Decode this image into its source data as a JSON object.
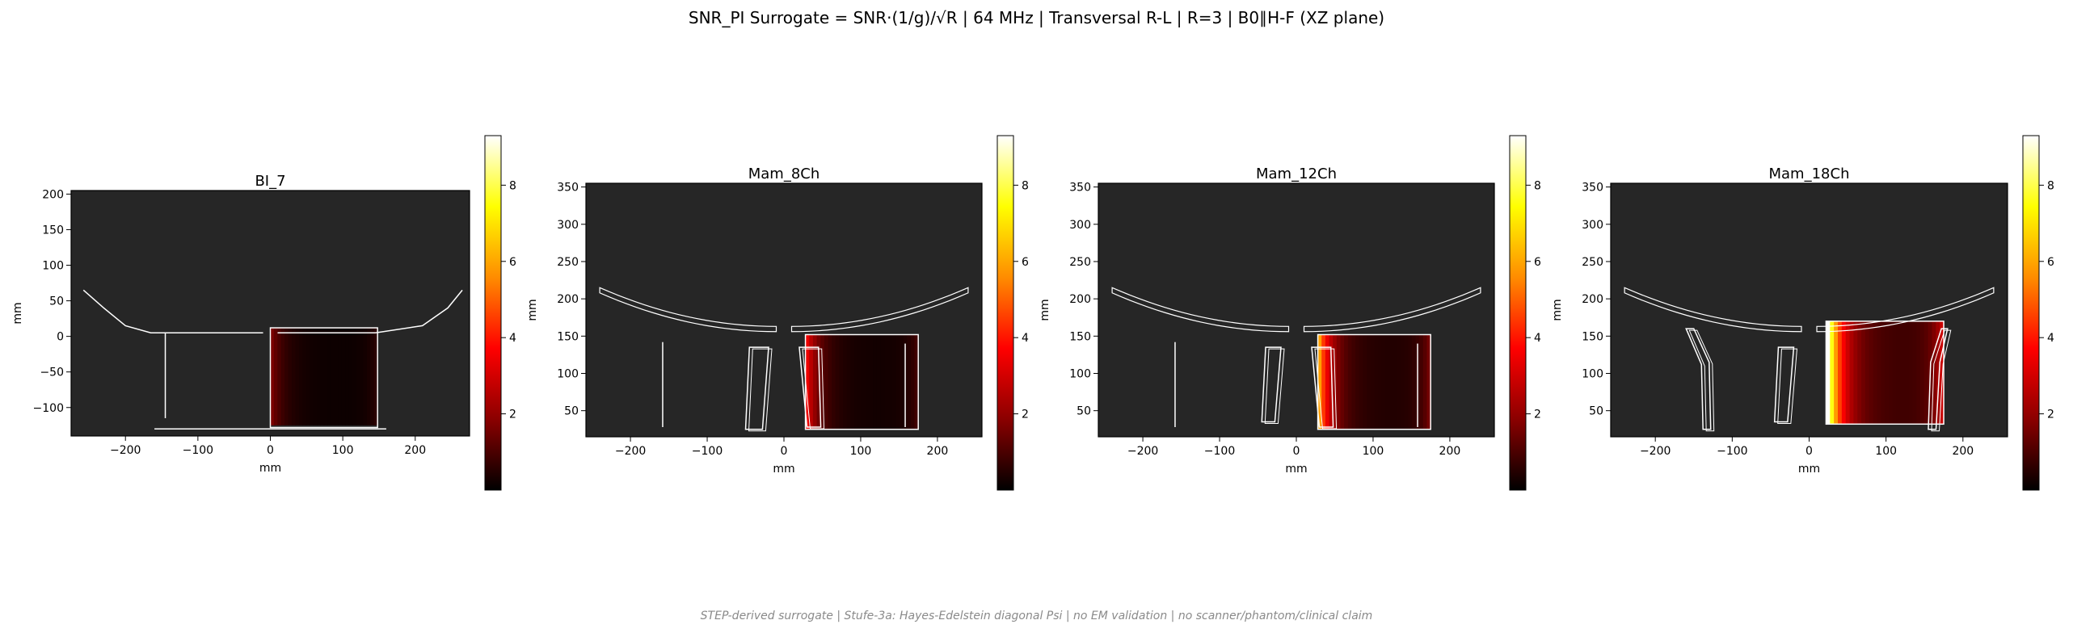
{
  "figure": {
    "title": "SNR_PI Surrogate = SNR·(1/g)/√R | 64 MHz | Transversal R-L | R=3 | B0∥H-F (XZ plane)",
    "footer": "STEP-derived surrogate | Stufe-3a: Hayes-Edelstein diagonal Psi | no EM validation | no scanner/phantom/clinical claim"
  },
  "colors": {
    "plot_background": "#262626",
    "outline": "#ffffff",
    "colormap": [
      "#000000",
      "#8b0000",
      "#ff0000",
      "#ff8c00",
      "#ffff00",
      "#ffffff"
    ]
  },
  "chart_data": [
    {
      "type": "heatmap",
      "title": "BI_7",
      "xlabel": "mm",
      "ylabel": "mm",
      "xlim": [
        -275,
        275
      ],
      "ylim": [
        -140,
        205
      ],
      "xticks": [
        -200,
        -100,
        0,
        100,
        200
      ],
      "yticks": [
        -100,
        -50,
        0,
        50,
        100,
        150,
        200
      ],
      "colorbar": {
        "range": [
          0,
          9.3
        ],
        "ticks": [
          2,
          4,
          6,
          8
        ]
      },
      "heat_region": {
        "x": [
          0,
          148
        ],
        "y": [
          -125,
          12
        ],
        "level": 0.6,
        "max_level": 1.5
      },
      "outlines": [
        {
          "kind": "polyline",
          "points": [
            [
              -258,
              65
            ],
            [
              -230,
              40
            ],
            [
              -200,
              15
            ],
            [
              -165,
              5
            ],
            [
              -10,
              5
            ]
          ]
        },
        {
          "kind": "polyline",
          "points": [
            [
              10,
              5
            ],
            [
              145,
              5
            ],
            [
              210,
              15
            ],
            [
              245,
              40
            ],
            [
              265,
              65
            ]
          ]
        },
        {
          "kind": "line",
          "points": [
            [
              -145,
              -115
            ],
            [
              -145,
              5
            ]
          ]
        },
        {
          "kind": "rect",
          "x": [
            0,
            148
          ],
          "y": [
            -128,
            12
          ]
        },
        {
          "kind": "line",
          "points": [
            [
              -160,
              -130
            ],
            [
              160,
              -130
            ]
          ]
        }
      ]
    },
    {
      "type": "heatmap",
      "title": "Mam_8Ch",
      "xlabel": "mm",
      "ylabel": "mm",
      "xlim": [
        -258,
        258
      ],
      "ylim": [
        15,
        355
      ],
      "xticks": [
        -200,
        -100,
        0,
        100,
        200
      ],
      "yticks": [
        50,
        100,
        150,
        200,
        250,
        300,
        350
      ],
      "colorbar": {
        "range": [
          0,
          9.3
        ],
        "ticks": [
          2,
          4,
          6,
          8
        ]
      },
      "heat_region": {
        "x": [
          28,
          175
        ],
        "y": [
          25,
          152
        ],
        "level": 0.9,
        "max_level": 3.2
      },
      "outlines": [
        {
          "kind": "arc",
          "x": [
            -240,
            -10
          ],
          "y_edge": 215,
          "y_center": 163,
          "thickness": 7
        },
        {
          "kind": "arc",
          "x": [
            10,
            240
          ],
          "y_edge": 215,
          "y_center": 163,
          "thickness": 7
        },
        {
          "kind": "line",
          "points": [
            [
              -158,
              28
            ],
            [
              -158,
              142
            ]
          ]
        },
        {
          "kind": "poly",
          "points": [
            [
              -50,
              25
            ],
            [
              -28,
              25
            ],
            [
              -20,
              135
            ],
            [
              -45,
              135
            ]
          ]
        },
        {
          "kind": "poly",
          "points": [
            [
              20,
              135
            ],
            [
              45,
              135
            ],
            [
              48,
              28
            ],
            [
              30,
              28
            ]
          ]
        },
        {
          "kind": "rect",
          "x": [
            28,
            175
          ],
          "y": [
            25,
            152
          ]
        },
        {
          "kind": "line",
          "points": [
            [
              158,
              28
            ],
            [
              158,
              140
            ]
          ]
        }
      ]
    },
    {
      "type": "heatmap",
      "title": "Mam_12Ch",
      "xlabel": "mm",
      "ylabel": "mm",
      "xlim": [
        -258,
        258
      ],
      "ylim": [
        15,
        355
      ],
      "xticks": [
        -200,
        -100,
        0,
        100,
        200
      ],
      "yticks": [
        50,
        100,
        150,
        200,
        250,
        300,
        350
      ],
      "colorbar": {
        "range": [
          0,
          9.3
        ],
        "ticks": [
          2,
          4,
          6,
          8
        ]
      },
      "heat_region": {
        "x": [
          28,
          175
        ],
        "y": [
          25,
          152
        ],
        "level": 1.6,
        "max_level": 5.5
      },
      "outlines": [
        {
          "kind": "arc",
          "x": [
            -240,
            -10
          ],
          "y_edge": 215,
          "y_center": 163,
          "thickness": 7
        },
        {
          "kind": "arc",
          "x": [
            10,
            240
          ],
          "y_edge": 215,
          "y_center": 163,
          "thickness": 7
        },
        {
          "kind": "line",
          "points": [
            [
              -158,
              28
            ],
            [
              -158,
              142
            ]
          ]
        },
        {
          "kind": "poly",
          "points": [
            [
              -45,
              35
            ],
            [
              -28,
              35
            ],
            [
              -20,
              135
            ],
            [
              -40,
              135
            ]
          ]
        },
        {
          "kind": "poly",
          "points": [
            [
              20,
              135
            ],
            [
              45,
              135
            ],
            [
              48,
              28
            ],
            [
              30,
              28
            ]
          ]
        },
        {
          "kind": "rect",
          "x": [
            28,
            175
          ],
          "y": [
            25,
            152
          ]
        },
        {
          "kind": "line",
          "points": [
            [
              158,
              28
            ],
            [
              158,
              140
            ]
          ]
        }
      ]
    },
    {
      "type": "heatmap",
      "title": "Mam_18Ch",
      "xlabel": "mm",
      "ylabel": "mm",
      "xlim": [
        -258,
        258
      ],
      "ylim": [
        15,
        355
      ],
      "xticks": [
        -200,
        -100,
        0,
        100,
        200
      ],
      "yticks": [
        50,
        100,
        150,
        200,
        250,
        300,
        350
      ],
      "colorbar": {
        "range": [
          0,
          9.3
        ],
        "ticks": [
          2,
          4,
          6,
          8
        ]
      },
      "heat_region": {
        "x": [
          22,
          175
        ],
        "y": [
          32,
          170
        ],
        "level": 3.0,
        "max_level": 9.2
      },
      "outlines": [
        {
          "kind": "arc",
          "x": [
            -240,
            -10
          ],
          "y_edge": 215,
          "y_center": 163,
          "thickness": 7
        },
        {
          "kind": "arc",
          "x": [
            10,
            240
          ],
          "y_edge": 215,
          "y_center": 163,
          "thickness": 7
        },
        {
          "kind": "poly",
          "points": [
            [
              -160,
              160
            ],
            [
              -150,
              160
            ],
            [
              -130,
              115
            ],
            [
              -128,
              25
            ],
            [
              -138,
              25
            ],
            [
              -140,
              112
            ]
          ]
        },
        {
          "kind": "poly",
          "points": [
            [
              -45,
              35
            ],
            [
              -28,
              35
            ],
            [
              -20,
              135
            ],
            [
              -40,
              135
            ]
          ]
        },
        {
          "kind": "rect",
          "x": [
            22,
            175
          ],
          "y": [
            32,
            170
          ]
        },
        {
          "kind": "poly",
          "points": [
            [
              155,
              25
            ],
            [
              165,
              25
            ],
            [
              170,
              115
            ],
            [
              180,
              160
            ],
            [
              172,
              160
            ],
            [
              158,
              115
            ]
          ]
        }
      ]
    }
  ]
}
